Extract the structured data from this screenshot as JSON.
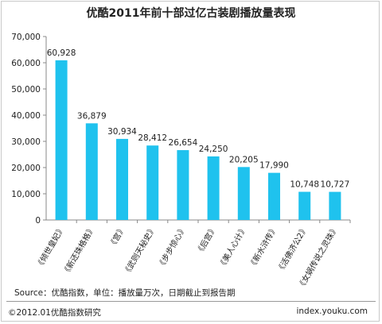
{
  "chart_data": {
    "type": "bar",
    "title": "优酷2011年前十部过亿古装剧播放量表现",
    "categories": [
      "《倾世皇妃》",
      "《新还珠格格》",
      "《宫》",
      "《武则天秘史》",
      "《步步惊心》",
      "《后宫》",
      "《美人心计》",
      "《新水浒传》",
      "《活佛济公2》",
      "《女娲传说之灵珠》"
    ],
    "values": [
      60928,
      36879,
      30934,
      28412,
      26654,
      24250,
      20205,
      17990,
      10748,
      10727
    ],
    "value_labels": [
      "60,928",
      "36,879",
      "30,934",
      "28,412",
      "26,654",
      "24,250",
      "20,205",
      "17,990",
      "10,748",
      "10,727"
    ],
    "ylim": [
      0,
      70000
    ],
    "yticks": [
      "0",
      "10,000",
      "20,000",
      "30,000",
      "40,000",
      "50,000",
      "60,000",
      "70,000"
    ],
    "bar_color": "#1fc2ee",
    "grid": false,
    "legend": "none"
  },
  "source": "Source：优酷指数，单位：播放量万次，日期截止到报告期",
  "footer_left": "©2012.01优酷指数研究",
  "footer_right": "index.youku.com"
}
